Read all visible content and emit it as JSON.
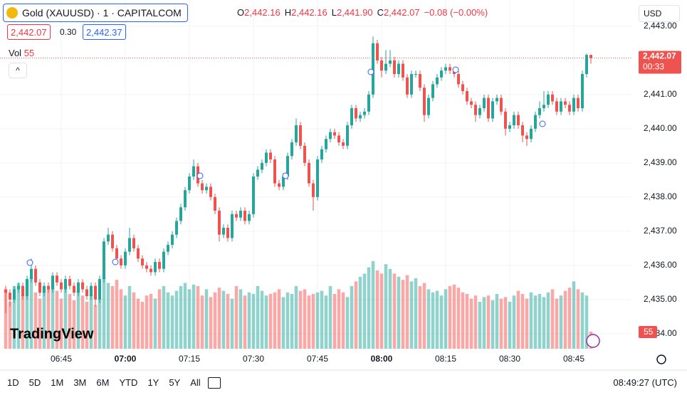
{
  "header": {
    "title": "Gold (XAUUSD) · 1 · CAPITALCOM",
    "ohlc": [
      {
        "key": "O",
        "value": "2,442.16"
      },
      {
        "key": "H",
        "value": "2,442.16"
      },
      {
        "key": "L",
        "value": "2,441.90"
      },
      {
        "key": "C",
        "value": "2,442.07"
      }
    ],
    "change": "−0.08 (−0.00%)",
    "bid": "2,442.07",
    "spread": "0.30",
    "ask": "2,442.37",
    "currency": "USD"
  },
  "logo": "TradingView",
  "toolbar": {
    "ranges": [
      "1D",
      "5D",
      "1M",
      "3M",
      "6M",
      "YTD",
      "1Y",
      "5Y",
      "All"
    ],
    "clock": "08:49:27 (UTC)"
  },
  "chart_data": {
    "type": "candlestick",
    "x": [
      "06:32",
      "06:33",
      "06:34",
      "06:35",
      "06:36",
      "06:37",
      "06:38",
      "06:39",
      "06:40",
      "06:41",
      "06:42",
      "06:43",
      "06:44",
      "06:45",
      "06:46",
      "06:47",
      "06:48",
      "06:49",
      "06:50",
      "06:51",
      "06:52",
      "06:53",
      "06:54",
      "06:55",
      "06:56",
      "06:57",
      "06:58",
      "06:59",
      "07:00",
      "07:01",
      "07:02",
      "07:03",
      "07:04",
      "07:05",
      "07:06",
      "07:07",
      "07:08",
      "07:09",
      "07:10",
      "07:11",
      "07:12",
      "07:13",
      "07:14",
      "07:15",
      "07:16",
      "07:17",
      "07:18",
      "07:19",
      "07:20",
      "07:21",
      "07:22",
      "07:23",
      "07:24",
      "07:25",
      "07:26",
      "07:27",
      "07:28",
      "07:29",
      "07:30",
      "07:31",
      "07:32",
      "07:33",
      "07:34",
      "07:35",
      "07:36",
      "07:37",
      "07:38",
      "07:39",
      "07:40",
      "07:41",
      "07:42",
      "07:43",
      "07:44",
      "07:45",
      "07:46",
      "07:47",
      "07:48",
      "07:49",
      "07:50",
      "07:51",
      "07:52",
      "07:53",
      "07:54",
      "07:55",
      "07:56",
      "07:57",
      "07:58",
      "07:59",
      "08:00",
      "08:01",
      "08:02",
      "08:03",
      "08:04",
      "08:05",
      "08:06",
      "08:07",
      "08:08",
      "08:09",
      "08:10",
      "08:11",
      "08:12",
      "08:13",
      "08:14",
      "08:15",
      "08:16",
      "08:17",
      "08:18",
      "08:19",
      "08:20",
      "08:21",
      "08:22",
      "08:23",
      "08:24",
      "08:25",
      "08:26",
      "08:27",
      "08:28",
      "08:29",
      "08:30",
      "08:31",
      "08:32",
      "08:33",
      "08:34",
      "08:35",
      "08:36",
      "08:37",
      "08:38",
      "08:39",
      "08:40",
      "08:41",
      "08:42",
      "08:43",
      "08:44",
      "08:45",
      "08:46",
      "08:47",
      "08:48",
      "08:49"
    ],
    "open": [
      2435.3,
      2435.2,
      2435.0,
      2435.3,
      2435.4,
      2435.1,
      2435.6,
      2435.9,
      2435.5,
      2435.2,
      2435.4,
      2435.3,
      2435.7,
      2435.5,
      2435.3,
      2435.6,
      2435.4,
      2435.2,
      2435.5,
      2435.3,
      2435.1,
      2435.4,
      2435.0,
      2435.6,
      2436.7,
      2436.9,
      2436.5,
      2436.2,
      2436.0,
      2436.4,
      2436.8,
      2436.5,
      2436.2,
      2436.0,
      2435.9,
      2435.8,
      2436.1,
      2435.9,
      2436.4,
      2436.6,
      2436.9,
      2437.3,
      2437.7,
      2438.2,
      2438.6,
      2438.9,
      2438.4,
      2438.2,
      2438.3,
      2438.0,
      2437.6,
      2436.9,
      2437.1,
      2436.8,
      2437.5,
      2437.4,
      2437.6,
      2437.3,
      2437.5,
      2438.6,
      2438.8,
      2439.0,
      2439.3,
      2439.1,
      2438.4,
      2438.3,
      2438.6,
      2439.2,
      2439.6,
      2440.1,
      2439.5,
      2439.0,
      2438.4,
      2438.0,
      2439.1,
      2439.4,
      2439.7,
      2439.9,
      2439.8,
      2439.6,
      2439.5,
      2440.1,
      2440.6,
      2440.3,
      2440.4,
      2440.5,
      2441.0,
      2442.5,
      2442.0,
      2441.7,
      2441.9,
      2442.0,
      2441.6,
      2441.9,
      2441.5,
      2441.0,
      2441.6,
      2441.6,
      2441.2,
      2440.4,
      2440.9,
      2441.3,
      2441.5,
      2441.7,
      2441.8,
      2441.7,
      2441.6,
      2441.3,
      2441.1,
      2440.8,
      2440.7,
      2440.4,
      2440.6,
      2440.9,
      2440.3,
      2440.8,
      2440.9,
      2440.5,
      2440.0,
      2440.1,
      2440.4,
      2440.1,
      2439.8,
      2439.7,
      2440.0,
      2440.4,
      2440.6,
      2440.7,
      2441.0,
      2440.8,
      2440.5,
      2440.8,
      2440.7,
      2440.5,
      2440.9,
      2440.6,
      2441.6,
      2442.16
    ],
    "high": [
      2435.4,
      2435.3,
      2435.4,
      2435.5,
      2435.5,
      2435.7,
      2436.2,
      2436.0,
      2435.6,
      2435.5,
      2435.5,
      2435.8,
      2435.8,
      2435.6,
      2435.7,
      2435.7,
      2435.5,
      2435.6,
      2435.6,
      2435.4,
      2435.5,
      2435.5,
      2435.7,
      2436.8,
      2437.1,
      2437.0,
      2436.6,
      2436.3,
      2436.5,
      2437.1,
      2436.9,
      2436.6,
      2436.3,
      2436.1,
      2436.0,
      2436.2,
      2436.2,
      2436.5,
      2436.7,
      2437.0,
      2437.4,
      2437.8,
      2438.3,
      2438.7,
      2439.1,
      2439.0,
      2438.5,
      2438.4,
      2438.4,
      2438.1,
      2437.7,
      2437.2,
      2437.2,
      2437.6,
      2437.6,
      2437.7,
      2437.7,
      2437.6,
      2438.7,
      2438.9,
      2439.1,
      2439.4,
      2439.4,
      2439.2,
      2438.5,
      2438.7,
      2439.3,
      2439.7,
      2440.3,
      2440.2,
      2439.6,
      2439.1,
      2438.5,
      2439.2,
      2439.5,
      2439.8,
      2440.0,
      2440.0,
      2439.9,
      2439.7,
      2440.2,
      2440.7,
      2440.7,
      2440.5,
      2440.6,
      2441.1,
      2442.7,
      2442.6,
      2442.1,
      2442.3,
      2442.3,
      2442.1,
      2442.0,
      2442.0,
      2441.6,
      2441.7,
      2441.7,
      2441.7,
      2441.3,
      2441.0,
      2441.4,
      2441.6,
      2441.8,
      2441.9,
      2441.9,
      2441.8,
      2441.7,
      2441.4,
      2441.2,
      2440.9,
      2440.8,
      2440.7,
      2441.0,
      2441.0,
      2440.9,
      2441.0,
      2441.0,
      2440.6,
      2440.2,
      2440.5,
      2440.5,
      2440.2,
      2439.9,
      2440.1,
      2440.5,
      2440.8,
      2441.1,
      2441.1,
      2441.1,
      2440.9,
      2440.9,
      2440.9,
      2440.8,
      2441.0,
      2441.0,
      2441.7,
      2442.2,
      2442.16
    ],
    "low": [
      2434.6,
      2434.8,
      2434.9,
      2435.2,
      2435.0,
      2435.0,
      2435.5,
      2435.4,
      2435.1,
      2435.1,
      2435.2,
      2435.2,
      2435.4,
      2435.2,
      2435.2,
      2435.3,
      2435.1,
      2435.1,
      2435.2,
      2435.0,
      2435.0,
      2434.8,
      2434.9,
      2435.5,
      2436.6,
      2436.4,
      2436.1,
      2435.9,
      2435.9,
      2436.3,
      2436.4,
      2436.1,
      2435.9,
      2435.8,
      2435.7,
      2435.7,
      2435.8,
      2435.8,
      2436.3,
      2436.5,
      2436.8,
      2437.2,
      2437.6,
      2438.1,
      2438.5,
      2438.3,
      2438.1,
      2438.1,
      2437.9,
      2437.5,
      2436.7,
      2436.8,
      2436.7,
      2436.7,
      2437.3,
      2437.3,
      2437.2,
      2437.2,
      2437.4,
      2438.5,
      2438.7,
      2438.9,
      2439.0,
      2438.3,
      2438.2,
      2438.2,
      2438.5,
      2439.1,
      2439.5,
      2439.4,
      2438.9,
      2438.3,
      2437.6,
      2437.9,
      2439.0,
      2439.3,
      2439.6,
      2439.7,
      2439.5,
      2439.4,
      2439.4,
      2440.0,
      2440.2,
      2440.2,
      2440.3,
      2440.4,
      2440.9,
      2441.9,
      2441.5,
      2441.6,
      2441.8,
      2441.5,
      2441.5,
      2441.4,
      2440.9,
      2440.9,
      2441.5,
      2441.1,
      2440.2,
      2440.3,
      2440.8,
      2441.2,
      2441.4,
      2441.6,
      2441.6,
      2441.5,
      2441.2,
      2441.0,
      2440.7,
      2440.6,
      2440.2,
      2440.3,
      2440.5,
      2440.2,
      2440.2,
      2440.7,
      2440.4,
      2439.8,
      2439.9,
      2440.0,
      2440.0,
      2439.6,
      2439.5,
      2439.6,
      2439.9,
      2440.3,
      2440.5,
      2440.6,
      2440.7,
      2440.4,
      2440.4,
      2440.6,
      2440.4,
      2440.4,
      2440.5,
      2440.5,
      2441.5,
      2441.9
    ],
    "close": [
      2435.2,
      2435.0,
      2435.3,
      2435.4,
      2435.1,
      2435.6,
      2435.9,
      2435.5,
      2435.2,
      2435.4,
      2435.3,
      2435.7,
      2435.5,
      2435.3,
      2435.6,
      2435.4,
      2435.2,
      2435.5,
      2435.3,
      2435.1,
      2435.4,
      2435.0,
      2435.6,
      2436.7,
      2436.9,
      2436.5,
      2436.2,
      2436.0,
      2436.4,
      2436.8,
      2436.5,
      2436.2,
      2436.0,
      2435.9,
      2435.8,
      2436.1,
      2435.9,
      2436.4,
      2436.6,
      2436.9,
      2437.3,
      2437.7,
      2438.2,
      2438.6,
      2438.9,
      2438.4,
      2438.2,
      2438.3,
      2438.0,
      2437.6,
      2436.9,
      2437.1,
      2436.8,
      2437.5,
      2437.4,
      2437.6,
      2437.3,
      2437.5,
      2438.6,
      2438.8,
      2439.0,
      2439.3,
      2439.1,
      2438.4,
      2438.3,
      2438.6,
      2439.2,
      2439.6,
      2440.1,
      2439.5,
      2439.0,
      2438.4,
      2438.0,
      2439.1,
      2439.4,
      2439.7,
      2439.9,
      2439.8,
      2439.6,
      2439.5,
      2440.1,
      2440.6,
      2440.3,
      2440.4,
      2440.5,
      2441.0,
      2442.5,
      2442.0,
      2441.7,
      2441.9,
      2442.0,
      2441.6,
      2441.9,
      2441.5,
      2441.0,
      2441.6,
      2441.6,
      2441.2,
      2440.4,
      2440.9,
      2441.3,
      2441.5,
      2441.7,
      2441.8,
      2441.7,
      2441.6,
      2441.3,
      2441.1,
      2440.8,
      2440.7,
      2440.4,
      2440.6,
      2440.9,
      2440.3,
      2440.8,
      2440.9,
      2440.5,
      2440.0,
      2440.1,
      2440.4,
      2440.1,
      2439.8,
      2439.7,
      2440.0,
      2440.4,
      2440.6,
      2440.7,
      2441.0,
      2440.8,
      2440.5,
      2440.8,
      2440.7,
      2440.5,
      2440.9,
      2440.6,
      2441.6,
      2442.16,
      2442.07
    ],
    "volume_name": "Vol",
    "volume": [
      190,
      150,
      200,
      210,
      170,
      220,
      230,
      180,
      160,
      200,
      190,
      210,
      185,
      160,
      200,
      175,
      155,
      190,
      170,
      150,
      175,
      140,
      160,
      230,
      210,
      200,
      220,
      190,
      170,
      200,
      180,
      160,
      150,
      170,
      175,
      160,
      190,
      200,
      180,
      170,
      185,
      200,
      210,
      190,
      205,
      200,
      170,
      190,
      165,
      180,
      195,
      185,
      175,
      160,
      200,
      190,
      170,
      180,
      175,
      200,
      185,
      170,
      175,
      180,
      190,
      165,
      180,
      175,
      200,
      185,
      190,
      170,
      175,
      180,
      185,
      170,
      200,
      175,
      190,
      180,
      165,
      200,
      215,
      230,
      240,
      260,
      280,
      250,
      240,
      270,
      255,
      240,
      230,
      220,
      235,
      215,
      225,
      200,
      210,
      190,
      180,
      185,
      170,
      190,
      200,
      205,
      195,
      180,
      175,
      160,
      170,
      150,
      165,
      170,
      155,
      175,
      160,
      165,
      150,
      170,
      185,
      175,
      160,
      180,
      170,
      175,
      165,
      180,
      190,
      160,
      170,
      185,
      195,
      215,
      190,
      180,
      170,
      55
    ],
    "volume_ylim": [
      0,
      300
    ],
    "up_color": "#26a69a",
    "down_color": "#ef5350",
    "ylim": [
      2433.56,
      2443.6
    ],
    "yticks": [
      {
        "value": 2434,
        "label": "2,434.00"
      },
      {
        "value": 2435,
        "label": "2,435.00"
      },
      {
        "value": 2436,
        "label": "2,436.00"
      },
      {
        "value": 2437,
        "label": "2,437.00"
      },
      {
        "value": 2438,
        "label": "2,438.00"
      },
      {
        "value": 2439,
        "label": "2,439.00"
      },
      {
        "value": 2440,
        "label": "2,440.00"
      },
      {
        "value": 2441,
        "label": "2,441.00"
      },
      {
        "value": 2443,
        "label": "2,443.00"
      }
    ],
    "xticks": [
      "06:45",
      "07:00",
      "07:15",
      "07:30",
      "07:45",
      "08:00",
      "08:15",
      "08:30",
      "08:45"
    ],
    "grid": true,
    "last_price": {
      "value": 2442.07,
      "label": "2,442.07"
    },
    "countdown": "00:33"
  }
}
